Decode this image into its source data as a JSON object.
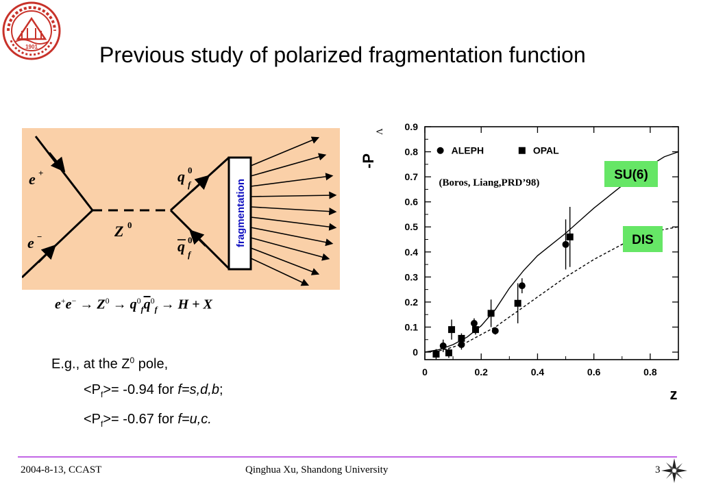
{
  "title": "Previous study of polarized fragmentation function",
  "logo": {
    "year_text": "1901",
    "ring_text": "SHANDONG UNIVERSITY"
  },
  "diagram": {
    "background_color": "#fad0a8",
    "e_plus": "e",
    "e_plus_sup": "+",
    "e_minus": "e",
    "e_minus_sup": "−",
    "boson": "Z",
    "boson_sup": "0",
    "quark": "q",
    "quark_sup": "0",
    "quark_sub": "f",
    "antiquark": "q",
    "antiquark_sup": "0",
    "antiquark_sub": "f",
    "box_label": "fragmentation"
  },
  "equation": {
    "ep": "e",
    "ep_sup": "+",
    "em": "e",
    "em_sup": "−",
    "arrow1": " → ",
    "z": "Z",
    "z_sup": "0",
    "arrow2": " → ",
    "q": "q",
    "q_sup": "0",
    "q_sub": "f",
    "qbar": "q",
    "qbar_sup": "0",
    "qbar_sub": "f",
    "arrow3": " → ",
    "rhs": "H + X"
  },
  "example": {
    "intro": "E.g., at the Z",
    "intro_sup": "0",
    "intro_end": " pole,",
    "line1_a": "<P",
    "line1_sub": "f",
    "line1_b": ">= -0.94 for ",
    "line1_c": "f=s,d,b",
    "line1_d": ";",
    "line2_a": "<P",
    "line2_sub": "f",
    "line2_b": ">= -0.67 for ",
    "line2_c": "f=u,c."
  },
  "chart_data": {
    "type": "scatter",
    "ylabel": "-P",
    "ylabel_sub": "Λ",
    "xlabel": "z",
    "xlim": [
      0,
      0.9
    ],
    "ylim": [
      -0.03,
      0.9
    ],
    "x_ticks": [
      0,
      0.2,
      0.4,
      0.6,
      0.8
    ],
    "x_tick_labels": [
      "0",
      "0.2",
      "0.4",
      "0.6",
      "0.8"
    ],
    "y_ticks": [
      0,
      0.1,
      0.2,
      0.3,
      0.4,
      0.5,
      0.6,
      0.7,
      0.8,
      0.9
    ],
    "y_tick_labels": [
      "0",
      "0.1",
      "0.2",
      "0.3",
      "0.4",
      "0.5",
      "0.6",
      "0.7",
      "0.8",
      "0.9"
    ],
    "citation": "(Boros, Liang,PRD’98)",
    "series": [
      {
        "name": "ALEPH",
        "marker": "circle",
        "points": [
          {
            "x": 0.065,
            "y": 0.025,
            "err": 0.025
          },
          {
            "x": 0.13,
            "y": 0.03,
            "err": 0.02
          },
          {
            "x": 0.175,
            "y": 0.115,
            "err": 0.02
          },
          {
            "x": 0.25,
            "y": 0.085,
            "err": 0.015
          },
          {
            "x": 0.345,
            "y": 0.265,
            "err": 0.03
          },
          {
            "x": 0.5,
            "y": 0.43,
            "err": 0.1
          }
        ]
      },
      {
        "name": "OPAL",
        "marker": "square",
        "points": [
          {
            "x": 0.04,
            "y": -0.008,
            "err": 0.02
          },
          {
            "x": 0.085,
            "y": -0.003,
            "err": 0.02
          },
          {
            "x": 0.095,
            "y": 0.09,
            "err": 0.04
          },
          {
            "x": 0.13,
            "y": 0.055,
            "err": 0.02
          },
          {
            "x": 0.18,
            "y": 0.09,
            "err": 0.02
          },
          {
            "x": 0.235,
            "y": 0.155,
            "err": 0.055
          },
          {
            "x": 0.33,
            "y": 0.195,
            "err": 0.08
          },
          {
            "x": 0.515,
            "y": 0.46,
            "err": 0.12
          }
        ]
      }
    ],
    "curves": [
      {
        "name": "SU(6)",
        "style": "solid",
        "x": [
          0.0,
          0.05,
          0.1,
          0.15,
          0.2,
          0.25,
          0.3,
          0.35,
          0.4,
          0.45,
          0.5,
          0.55,
          0.6,
          0.65,
          0.7,
          0.75,
          0.8,
          0.85,
          0.9
        ],
        "y": [
          0.0,
          0.01,
          0.03,
          0.06,
          0.105,
          0.17,
          0.255,
          0.325,
          0.385,
          0.43,
          0.475,
          0.525,
          0.575,
          0.62,
          0.665,
          0.705,
          0.745,
          0.78,
          0.8
        ]
      },
      {
        "name": "DIS",
        "style": "dashed",
        "x": [
          0.0,
          0.05,
          0.1,
          0.15,
          0.2,
          0.25,
          0.3,
          0.35,
          0.4,
          0.45,
          0.5,
          0.55,
          0.6,
          0.65,
          0.7,
          0.75,
          0.8,
          0.85,
          0.9
        ],
        "y": [
          0.0,
          0.005,
          0.02,
          0.04,
          0.07,
          0.1,
          0.14,
          0.18,
          0.22,
          0.26,
          0.3,
          0.335,
          0.37,
          0.4,
          0.43,
          0.455,
          0.475,
          0.49,
          0.5
        ]
      }
    ],
    "labels": [
      {
        "text": "SU(6)",
        "color": "#66e666"
      },
      {
        "text": "DIS",
        "color": "#66e666"
      }
    ],
    "grid": false
  },
  "footer": {
    "date": "2004-8-13,  CCAST",
    "author": "Qinghua Xu, Shandong University",
    "page": "3",
    "line_color": "#c266e6"
  }
}
